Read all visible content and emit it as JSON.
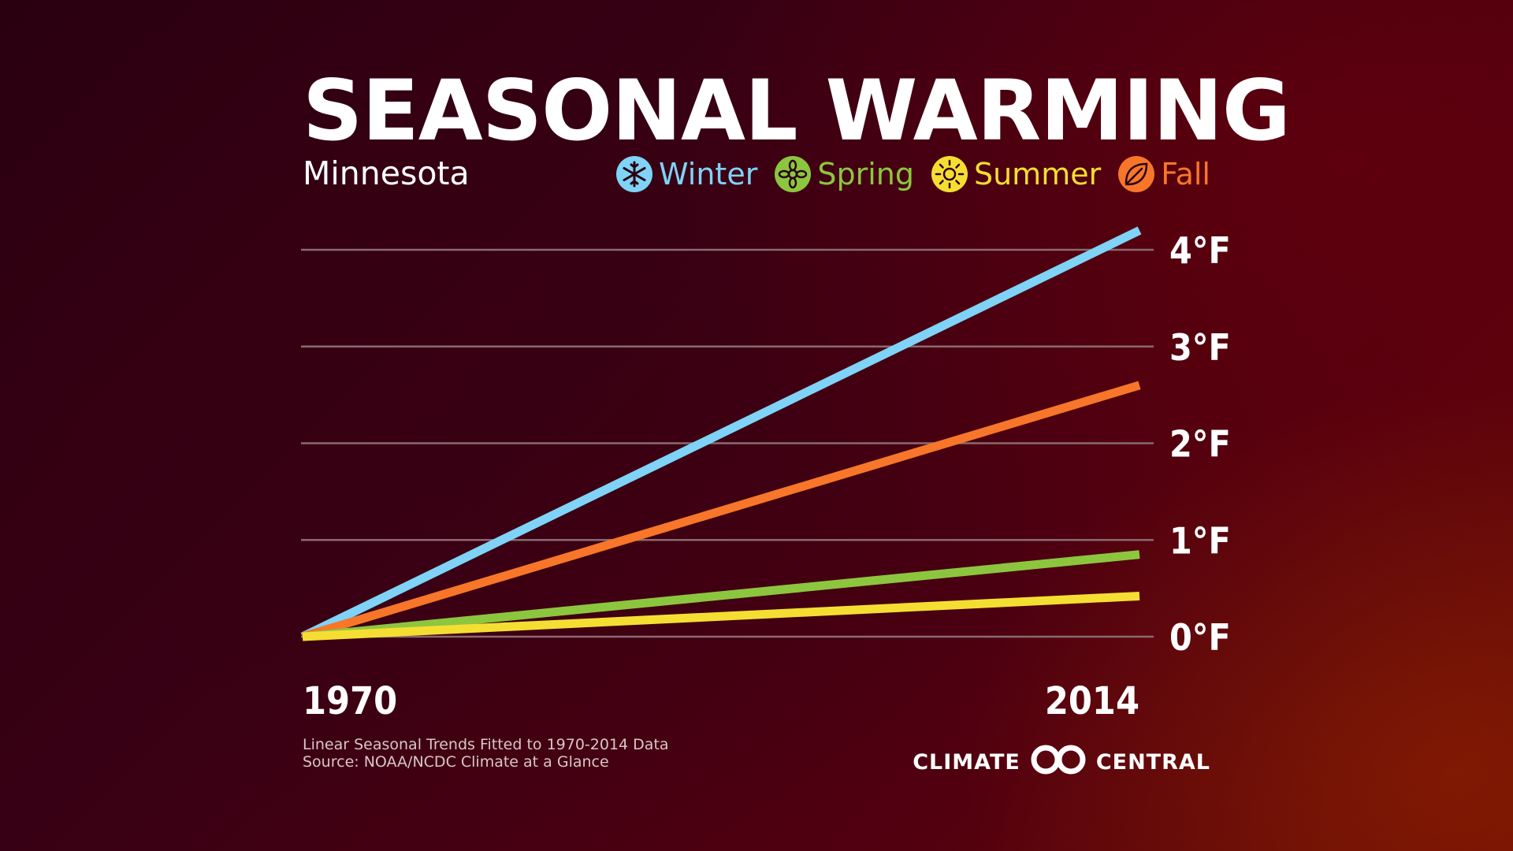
{
  "title": "SEASONAL WARMING",
  "subtitle": "Minnesota",
  "legend": [
    {
      "label": "Winter",
      "color": "#7fd3f7",
      "icon": "snowflake-icon"
    },
    {
      "label": "Spring",
      "color": "#8cc63f",
      "icon": "flower-icon"
    },
    {
      "label": "Summer",
      "color": "#f5de32",
      "icon": "sun-icon"
    },
    {
      "label": "Fall",
      "color": "#f7762a",
      "icon": "leaf-icon"
    }
  ],
  "footnote": {
    "line1": "Linear Seasonal Trends Fitted to 1970-2014 Data",
    "line2": "Source: NOAA/NCDC Climate at a Glance"
  },
  "brand": {
    "left": "CLIMATE",
    "right": "CENTRAL"
  },
  "chart_data": {
    "type": "line",
    "x_labels": [
      "1970",
      "2014"
    ],
    "xlim": [
      1970,
      2014
    ],
    "ylim": [
      0,
      4
    ],
    "y_ticks": [
      "0°F",
      "1°F",
      "2°F",
      "3°F",
      "4°F"
    ],
    "grid": true,
    "series": [
      {
        "name": "Winter",
        "color": "#7fd3f7",
        "x": [
          1970,
          2014
        ],
        "y": [
          0,
          4.2
        ]
      },
      {
        "name": "Fall",
        "color": "#f7762a",
        "x": [
          1970,
          2014
        ],
        "y": [
          0,
          2.6
        ]
      },
      {
        "name": "Spring",
        "color": "#8cc63f",
        "x": [
          1970,
          2014
        ],
        "y": [
          0,
          0.85
        ]
      },
      {
        "name": "Summer",
        "color": "#f5de32",
        "x": [
          1970,
          2014
        ],
        "y": [
          0,
          0.42
        ]
      }
    ]
  }
}
